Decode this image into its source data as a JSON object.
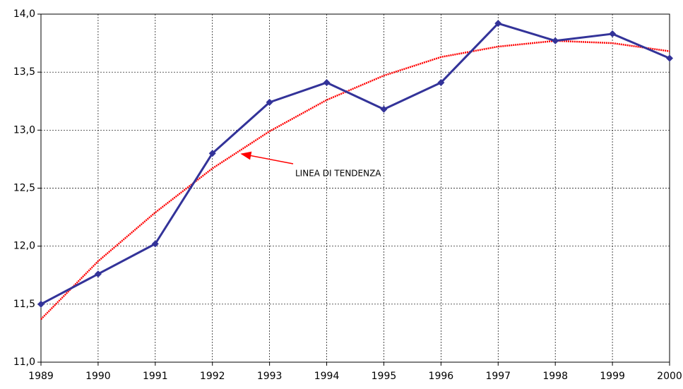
{
  "chart_data": {
    "type": "line",
    "categories": [
      "1989",
      "1990",
      "1991",
      "1992",
      "1993",
      "1994",
      "1995",
      "1996",
      "1997",
      "1998",
      "1999",
      "2000"
    ],
    "series": [
      {
        "color": "#333399",
        "marker": "diamond",
        "values": [
          11.5,
          11.76,
          12.02,
          12.8,
          13.24,
          13.41,
          13.18,
          13.41,
          13.92,
          13.77,
          13.83,
          13.62
        ]
      },
      {
        "color": "#ff0000",
        "dashed": true,
        "values": [
          11.37,
          11.87,
          12.29,
          12.67,
          12.99,
          13.26,
          13.47,
          13.63,
          13.72,
          13.77,
          13.75,
          13.68
        ]
      }
    ],
    "ylim": [
      11,
      14
    ],
    "yticks": [
      {
        "value": 11,
        "label": "11,0"
      },
      {
        "value": 11.5,
        "label": "11,5"
      },
      {
        "value": 12,
        "label": "12,0"
      },
      {
        "value": 12.5,
        "label": "12,5"
      },
      {
        "value": 13,
        "label": "13,0"
      },
      {
        "value": 13.5,
        "label": "13,5"
      },
      {
        "value": 14,
        "label": "14,0"
      }
    ],
    "grid": true,
    "annotations": [
      {
        "text": "LINEA DI TENDENZA"
      }
    ]
  }
}
